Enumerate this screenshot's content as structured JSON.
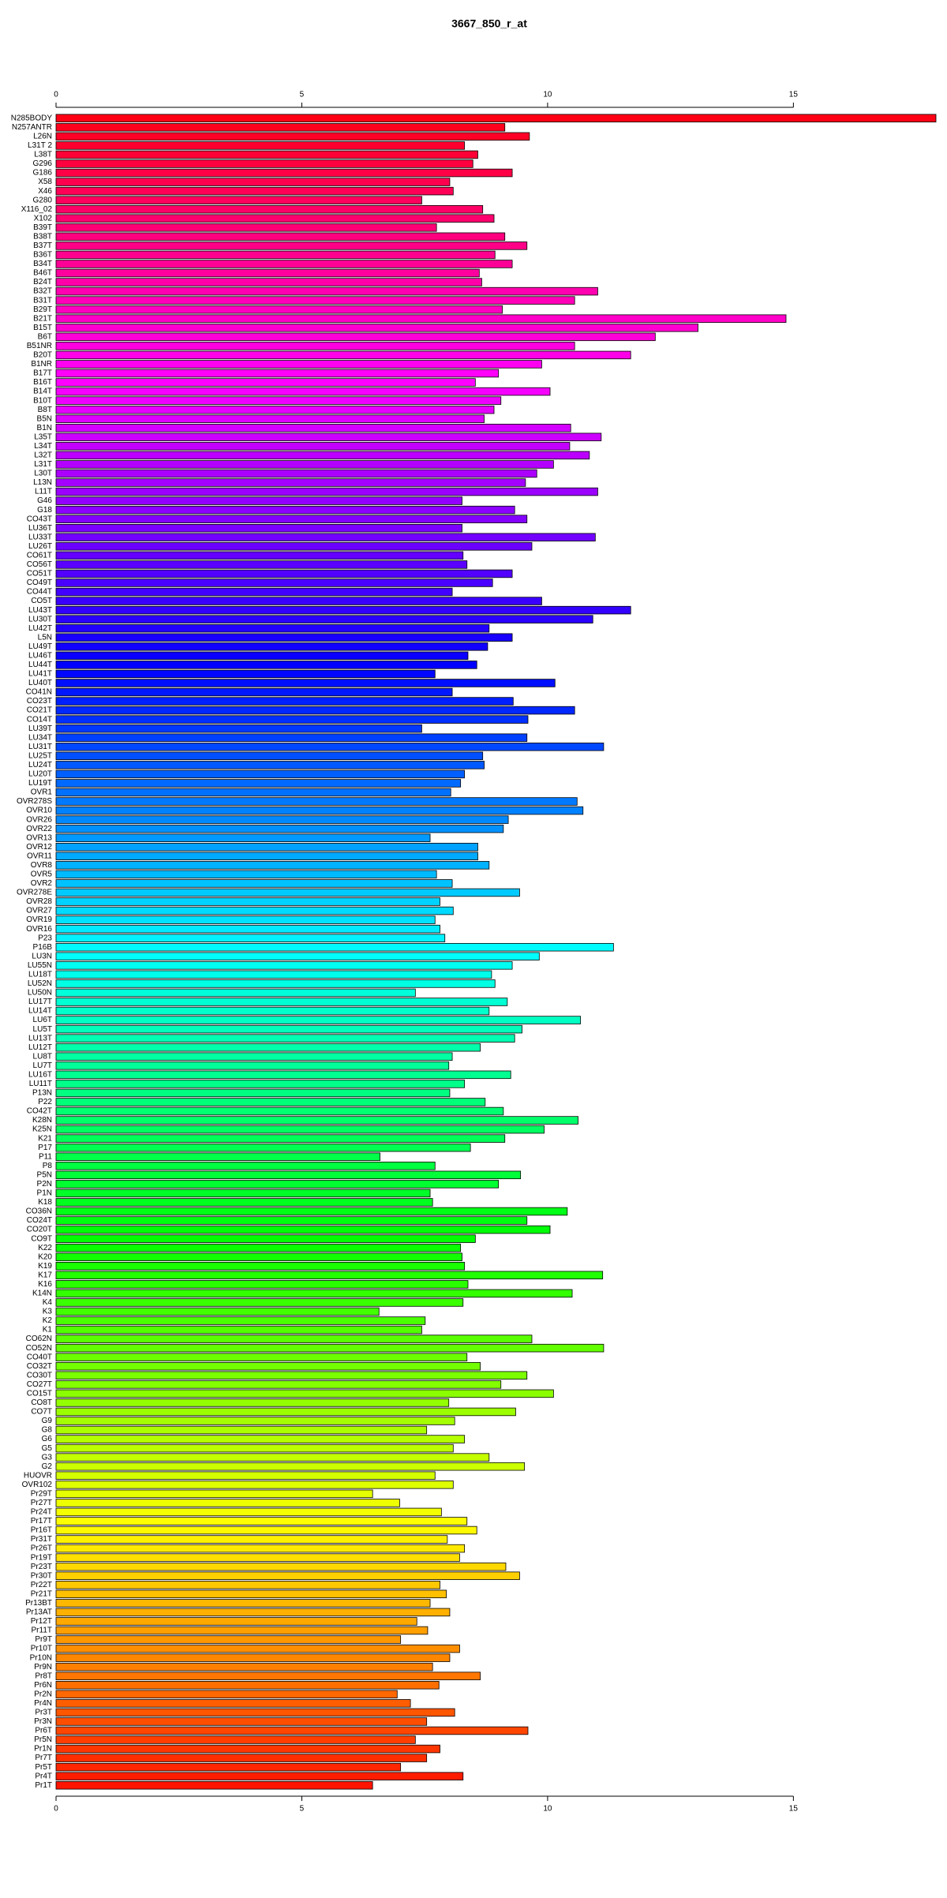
{
  "chart_data": {
    "type": "barh",
    "title": "3667_850_r_at",
    "categories": [
      "N285BODY",
      "N257ANTR",
      "L26N",
      "L31T 2",
      "L38T",
      "G296",
      "G186",
      "X58",
      "X46",
      "G280",
      "X116_02",
      "X102",
      "B39T",
      "B38T",
      "B37T",
      "B36T",
      "B34T",
      "B46T",
      "B24T",
      "B32T",
      "B31T",
      "B29T",
      "B21T",
      "B15T",
      "B6T",
      "B51NR",
      "B20T",
      "B1NR",
      "B17T",
      "B16T",
      "B14T",
      "B10T",
      "B8T",
      "B5N",
      "B1N",
      "L35T",
      "L34T",
      "L32T",
      "L31T",
      "L30T",
      "L13N",
      "L11T",
      "G46",
      "G18",
      "CO43T",
      "LU36T",
      "LU33T",
      "LU26T",
      "CO61T",
      "CO56T",
      "CO51T",
      "CO49T",
      "CO44T",
      "CO5T",
      "LU43T",
      "LU30T",
      "LU42T",
      "L5N",
      "LU49T",
      "LU46T",
      "LU44T",
      "LU41T",
      "LU40T",
      "CO41N",
      "CO23T",
      "CO21T",
      "CO14T",
      "LU39T",
      "LU34T",
      "LU31T",
      "LU25T",
      "LU24T",
      "LU20T",
      "LU19T",
      "OVR1",
      "OVR278S",
      "OVR10",
      "OVR26",
      "OVR22",
      "OVR13",
      "OVR12",
      "OVR11",
      "OVR8",
      "OVR5",
      "OVR2",
      "OVR278E",
      "OVR28",
      "OVR27",
      "OVR19",
      "OVR16",
      "P23",
      "P16B",
      "LU3N",
      "LU55N",
      "LU18T",
      "LU52N",
      "LU50N",
      "LU17T",
      "LU14T",
      "LU6T",
      "LU5T",
      "LU13T",
      "LU12T",
      "LU8T",
      "LU7T",
      "LU16T",
      "LU11T",
      "P13N",
      "P22",
      "CO42T",
      "K28N",
      "K25N",
      "K21",
      "P17",
      "P11",
      "P8",
      "P5N",
      "P2N",
      "P1N",
      "K18",
      "CO36N",
      "CO24T",
      "CO20T",
      "CO9T",
      "K22",
      "K20",
      "K19",
      "K17",
      "K16",
      "K14N",
      "K4",
      "K3",
      "K2",
      "K1",
      "CO62N",
      "CO52N",
      "CO40T",
      "CO32T",
      "CO30T",
      "CO27T",
      "CO15T",
      "CO8T",
      "CO7T",
      "G9",
      "G8",
      "G6",
      "G5",
      "G3",
      "G2",
      "HUOVR",
      "OVR102",
      "Pr29T",
      "Pr27T",
      "Pr24T",
      "Pr17T",
      "Pr16T",
      "Pr31T",
      "Pr26T",
      "Pr19T",
      "Pr23T",
      "Pr30T",
      "Pr22T",
      "Pr21T",
      "Pr13BT",
      "Pr13AT",
      "Pr12T",
      "Pr11T",
      "Pr9T",
      "Pr10T",
      "Pr10N",
      "Pr9N",
      "Pr8T",
      "Pr6N",
      "Pr2N",
      "Pr4N",
      "Pr3T",
      "Pr3N",
      "Pr6T",
      "Pr5N",
      "Pr1N",
      "Pr7T",
      "Pr5T",
      "Pr4T",
      "Pr1T"
    ],
    "values": [
      17.9,
      9.13,
      9.63,
      8.31,
      8.58,
      8.48,
      9.28,
      8.01,
      8.08,
      7.44,
      8.68,
      8.91,
      7.74,
      9.13,
      9.58,
      8.93,
      9.28,
      8.61,
      8.66,
      11.02,
      10.55,
      9.08,
      14.85,
      13.06,
      12.19,
      10.55,
      11.69,
      9.88,
      9.0,
      8.53,
      10.05,
      9.05,
      8.91,
      8.71,
      10.47,
      11.09,
      10.45,
      10.85,
      10.12,
      9.78,
      9.55,
      11.02,
      8.26,
      9.33,
      9.58,
      8.26,
      10.97,
      9.68,
      8.28,
      8.36,
      9.28,
      8.88,
      8.06,
      9.88,
      11.69,
      10.92,
      8.81,
      9.28,
      8.78,
      8.38,
      8.56,
      7.71,
      10.15,
      8.06,
      9.3,
      10.55,
      9.6,
      7.44,
      9.58,
      11.14,
      8.68,
      8.71,
      8.31,
      8.23,
      8.03,
      10.6,
      10.72,
      9.2,
      9.1,
      7.61,
      8.58,
      8.58,
      8.81,
      7.74,
      8.06,
      9.43,
      7.81,
      8.08,
      7.71,
      7.81,
      7.91,
      11.34,
      9.83,
      9.28,
      8.86,
      8.93,
      7.31,
      9.18,
      8.81,
      10.67,
      9.48,
      9.33,
      8.63,
      8.06,
      7.99,
      9.25,
      8.31,
      8.01,
      8.73,
      9.1,
      10.62,
      9.93,
      9.13,
      8.43,
      6.59,
      7.71,
      9.45,
      9.0,
      7.61,
      7.66,
      10.4,
      9.58,
      10.05,
      8.53,
      8.23,
      8.26,
      8.31,
      11.12,
      8.38,
      10.5,
      8.28,
      6.57,
      7.51,
      7.44,
      9.68,
      11.14,
      8.36,
      8.63,
      9.58,
      9.05,
      10.12,
      7.99,
      9.35,
      8.11,
      7.54,
      8.31,
      8.08,
      8.81,
      9.53,
      7.71,
      8.08,
      6.44,
      6.99,
      7.84,
      8.36,
      8.56,
      7.96,
      8.31,
      8.21,
      9.15,
      9.43,
      7.81,
      7.94,
      7.61,
      8.01,
      7.34,
      7.56,
      7.01,
      8.21,
      8.01,
      7.66,
      8.63,
      7.79,
      6.94,
      7.21,
      8.11,
      7.54,
      9.6,
      7.31,
      7.81,
      7.54,
      7.01,
      8.28,
      6.44
    ],
    "bar_colors": {
      "scale": "hsl-hue",
      "start": 355,
      "end": 5
    },
    "xlim": [
      0,
      17.9
    ],
    "xticks": [
      0,
      5,
      10,
      15
    ],
    "grid": false
  }
}
